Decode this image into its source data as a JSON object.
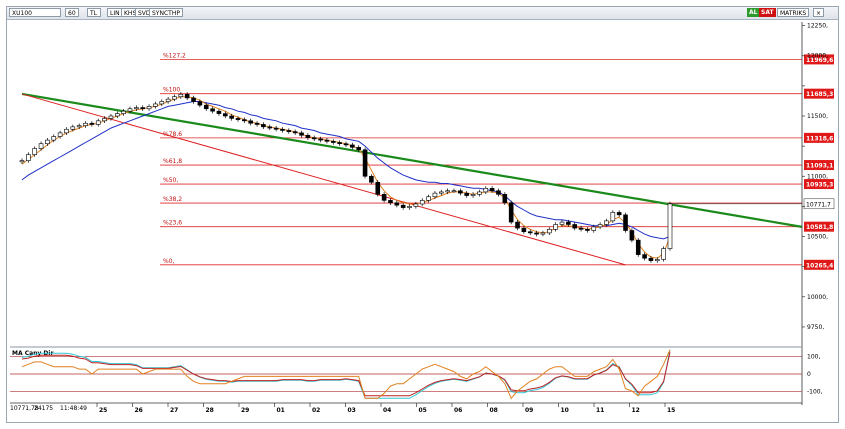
{
  "toolbar": {
    "symbol": "XU100",
    "period": "60",
    "currency": "TL",
    "buttons": [
      "LIN",
      "KHS",
      "SVD",
      "SYNCTHP"
    ],
    "right_labels": [
      "AL",
      "SAT",
      "MATRIKS"
    ],
    "colors": {
      "al": "#2e9a2e",
      "sat": "#d01010",
      "matriks": "#f5f5f5"
    }
  },
  "status": {
    "value": "10771,78",
    "sep": "24175",
    "time": "11:48:49"
  },
  "chart_data": {
    "type": "candlestick",
    "price_axis": {
      "ticks": [
        9750,
        10000,
        10250,
        10500,
        10750,
        11000,
        11250,
        11500,
        11750,
        12000,
        12250
      ],
      "tick_labels": [
        "9750,",
        "10000,",
        "",
        "10500,",
        "",
        "11000,",
        "",
        "11500,",
        "",
        "12000,",
        "12250,"
      ],
      "range": [
        9600,
        12280
      ]
    },
    "date_axis": {
      "labels": [
        "25",
        "26",
        "27",
        "28",
        "29",
        "01",
        "02",
        "03",
        "04",
        "05",
        "06",
        "08",
        "09",
        "10",
        "11",
        "12",
        "15"
      ]
    },
    "fibonacci": [
      {
        "label": "%127,2",
        "value": 11969.6,
        "tag": "11969,6"
      },
      {
        "label": "%100",
        "value": 11685.3,
        "tag": "11685,3"
      },
      {
        "label": "%78,6",
        "value": 11318.6,
        "tag": "11318,6"
      },
      {
        "label": "%61,8",
        "value": 11093.1,
        "tag": "11093,1"
      },
      {
        "label": "%50,",
        "value": 10935.3,
        "tag": "10935,3"
      },
      {
        "label": "%38,2",
        "value": 10777.6,
        "tag": ""
      },
      {
        "label": "%23,6",
        "value": 10581.8,
        "tag": "10581,8"
      },
      {
        "label": "%0,",
        "value": 10265.4,
        "tag": "10265,4"
      }
    ],
    "last_price": {
      "value": 10771.7,
      "tag": "10771,7"
    },
    "series_close": [
      11130,
      11180,
      11230,
      11270,
      11300,
      11330,
      11360,
      11390,
      11410,
      11420,
      11440,
      11430,
      11460,
      11480,
      11500,
      11520,
      11540,
      11560,
      11570,
      11560,
      11580,
      11600,
      11620,
      11640,
      11660,
      11680,
      11650,
      11620,
      11590,
      11560,
      11540,
      11520,
      11500,
      11480,
      11470,
      11460,
      11440,
      11430,
      11410,
      11400,
      11390,
      11380,
      11370,
      11360,
      11340,
      11320,
      11310,
      11300,
      11290,
      11280,
      11270,
      11260,
      11240,
      11220,
      11000,
      10950,
      10850,
      10800,
      10780,
      10760,
      10740,
      10750,
      10770,
      10800,
      10830,
      10860,
      10870,
      10880,
      10880,
      10860,
      10840,
      10850,
      10870,
      10900,
      10880,
      10850,
      10780,
      10620,
      10570,
      10540,
      10530,
      10520,
      10530,
      10560,
      10600,
      10620,
      10600,
      10570,
      10560,
      10550,
      10580,
      10600,
      10630,
      10700,
      10680,
      10550,
      10470,
      10350,
      10320,
      10300,
      10310,
      10400,
      10771
    ],
    "ma_fast": [
      11100,
      11140,
      11180,
      11220,
      11260,
      11300,
      11330,
      11360,
      11380,
      11400,
      11420,
      11430,
      11440,
      11460,
      11480,
      11500,
      11520,
      11540,
      11550,
      11560,
      11570,
      11580,
      11600,
      11620,
      11640,
      11660,
      11660,
      11650,
      11630,
      11600,
      11580,
      11560,
      11540,
      11510,
      11490,
      11470,
      11450,
      11440,
      11420,
      11410,
      11400,
      11390,
      11380,
      11370,
      11350,
      11330,
      11320,
      11310,
      11300,
      11290,
      11280,
      11270,
      11250,
      11230,
      11150,
      11050,
      10950,
      10880,
      10830,
      10800,
      10780,
      10770,
      10770,
      10780,
      10800,
      10820,
      10840,
      10860,
      10870,
      10870,
      10860,
      10850,
      10860,
      10870,
      10870,
      10860,
      10820,
      10720,
      10640,
      10590,
      10560,
      10540,
      10530,
      10540,
      10570,
      10590,
      10590,
      10580,
      10570,
      10560,
      10570,
      10580,
      10600,
      10640,
      10660,
      10610,
      10540,
      10440,
      10370,
      10330,
      10320,
      10360,
      10500
    ],
    "ma_slow": [
      10970,
      11010,
      11040,
      11070,
      11100,
      11130,
      11160,
      11190,
      11220,
      11250,
      11280,
      11310,
      11340,
      11370,
      11400,
      11420,
      11440,
      11460,
      11480,
      11500,
      11520,
      11540,
      11560,
      11580,
      11590,
      11600,
      11610,
      11620,
      11620,
      11610,
      11600,
      11590,
      11570,
      11560,
      11540,
      11530,
      11510,
      11500,
      11480,
      11470,
      11460,
      11440,
      11430,
      11420,
      11400,
      11390,
      11380,
      11360,
      11350,
      11340,
      11330,
      11310,
      11300,
      11290,
      11250,
      11200,
      11150,
      11110,
      11070,
      11040,
      11010,
      10990,
      10970,
      10960,
      10950,
      10950,
      10940,
      10940,
      10930,
      10920,
      10910,
      10900,
      10900,
      10890,
      10880,
      10870,
      10840,
      10790,
      10750,
      10720,
      10690,
      10670,
      10660,
      10650,
      10640,
      10640,
      10630,
      10620,
      10610,
      10600,
      10590,
      10590,
      10590,
      10600,
      10610,
      10600,
      10580,
      10550,
      10520,
      10500,
      10490,
      10480,
      10500
    ],
    "trendlines": [
      {
        "name": "",
        "color": "#1a8a1a",
        "from": [
          0,
          11683
        ],
        "to": [
          102,
          10580
        ]
      },
      {
        "name": "",
        "color": "#dd2020",
        "from": [
          0,
          11683
        ],
        "to": [
          95,
          10265
        ]
      }
    ],
    "oscillator": {
      "title": "MA Cany Dir",
      "ticks": [
        100,
        0,
        -100
      ],
      "tick_labels": [
        "100,",
        "0",
        "-100,"
      ],
      "guide_levels": [
        100,
        0,
        -100
      ]
    }
  }
}
